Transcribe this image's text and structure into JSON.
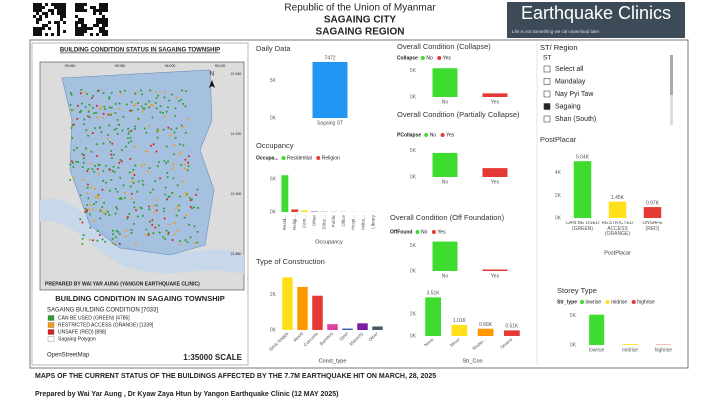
{
  "header": {
    "line1": "Republic of the Union of Myanmar",
    "line2": "SAGAING CITY",
    "line3": "SAGAING REGION"
  },
  "brand": {
    "name": "Earthquake Clinics",
    "tagline": "Life is not something we can download later"
  },
  "map": {
    "title": "BUILDING CONDITION STATUS IN SAGAING TOWNSHIP",
    "lon_labels": [
      "95.960",
      "95.980",
      "96.000",
      "96.020"
    ],
    "lat_labels": [
      "21.940",
      "21.920",
      "21.900",
      "21.880"
    ],
    "north": "N",
    "credit": "PREPARED BY WAI YAR AUNG (YANGON EARTHQUAKE CLINIC)",
    "subtitle": "BUILDING CONDITION IN SAGAING TOWNSHIP",
    "legend_title": "SAGAING BUILDING CONDITION [7033]",
    "legend": [
      {
        "name": "CAN BE USED (GREEN) [4785]",
        "color": "#2e9e2e"
      },
      {
        "name": "RESTRICTED ACCESS (ORANGE) [1339]",
        "color": "#f39c12"
      },
      {
        "name": "UNSAFE (RED) [898]",
        "color": "#d62020"
      },
      {
        "name": "Sagaing Polygon",
        "color": "#ffffff"
      }
    ],
    "basemap": "OpenStreetMap",
    "scale": "1:35000 SCALE"
  },
  "slicer": {
    "title": "ST/ Region",
    "field": "ST",
    "items": [
      {
        "label": "Select all",
        "checked": false
      },
      {
        "label": "Mandalay",
        "checked": false
      },
      {
        "label": "Nay Pyi Taw",
        "checked": false
      },
      {
        "label": "Sagaing",
        "checked": true
      },
      {
        "label": "Shan (South)",
        "checked": false
      }
    ]
  },
  "chart_data": [
    {
      "type": "bar",
      "title": "Daily Data",
      "categories": [
        "Sagaing ST"
      ],
      "values": [
        7472
      ],
      "colors": [
        "#2196f3"
      ],
      "data_labels": true,
      "ylim": [
        0,
        8000
      ],
      "yticks": [
        {
          "value": 0,
          "label": "0K"
        },
        {
          "value": 5000,
          "label": "5K"
        }
      ]
    },
    {
      "type": "bar",
      "title": "Occupancy",
      "legend": {
        "title": "Occupa...",
        "items": [
          {
            "name": "Residential",
            "color": "#3ddc2f"
          },
          {
            "name": "Religion",
            "color": "#e53935"
          }
        ]
      },
      "categories": [
        "Resid...",
        "Religi...",
        "Com...",
        "Other",
        "Educ...",
        "Public",
        "Office",
        "Hospi...",
        "Indus...",
        "Library"
      ],
      "values": [
        5600,
        400,
        250,
        80,
        60,
        40,
        30,
        20,
        15,
        10
      ],
      "colors": [
        "#3ddc2f",
        "#e53935",
        "#ffe01a",
        "#7e57c2",
        "#9e9e9e",
        "#9e9e9e",
        "#9e9e9e",
        "#9e9e9e",
        "#9e9e9e",
        "#9e9e9e"
      ],
      "xlabel": "Occupancy",
      "ylim": [
        0,
        7000
      ],
      "yticks": [
        {
          "value": 0,
          "label": "0K"
        },
        {
          "value": 5000,
          "label": "5K"
        }
      ]
    },
    {
      "type": "bar",
      "title": "Type of Construction",
      "categories": [
        "Brick Nogga",
        "Wood",
        "Concrete",
        "Bamboo",
        "Steel",
        "Masonry",
        "Other"
      ],
      "values": [
        3000,
        2450,
        1950,
        330,
        80,
        380,
        200
      ],
      "colors": [
        "#ffe01a",
        "#ff9800",
        "#e53935",
        "#e040a0",
        "#3f51b5",
        "#7b1fa2",
        "#455a64"
      ],
      "xlabel": "Const_type",
      "ylim": [
        0,
        3300
      ],
      "yticks": [
        {
          "value": 0,
          "label": "0K"
        },
        {
          "value": 2000,
          "label": "2K"
        }
      ]
    },
    {
      "type": "bar",
      "title": "Overall Condition (Collapse)",
      "legend": {
        "title": "Collapse",
        "items": [
          {
            "name": "No",
            "color": "#3ddc2f"
          },
          {
            "name": "Yes",
            "color": "#e53935"
          }
        ]
      },
      "categories": [
        "No",
        "Yes"
      ],
      "values": [
        5500,
        700
      ],
      "colors": [
        "#3ddc2f",
        "#e53935"
      ],
      "ylim": [
        0,
        6500
      ],
      "yticks": [
        {
          "value": 0,
          "label": "0K"
        },
        {
          "value": 5000,
          "label": "5K"
        }
      ]
    },
    {
      "type": "bar",
      "title": "Overall Condition (Partially Collapse)",
      "legend": {
        "title": "PCollapse",
        "items": [
          {
            "name": "No",
            "color": "#3ddc2f"
          },
          {
            "name": "Yes",
            "color": "#e53935"
          }
        ]
      },
      "categories": [
        "No",
        "Yes"
      ],
      "values": [
        4600,
        1700
      ],
      "colors": [
        "#3ddc2f",
        "#e53935"
      ],
      "ylim": [
        0,
        6500
      ],
      "yticks": [
        {
          "value": 0,
          "label": "0K"
        },
        {
          "value": 5000,
          "label": "5K"
        }
      ]
    },
    {
      "type": "bar",
      "title": "Overall Condition (Off Foundation)",
      "legend": {
        "title": "OffFound",
        "items": [
          {
            "name": "No",
            "color": "#3ddc2f"
          },
          {
            "name": "Yes",
            "color": "#e53935"
          }
        ]
      },
      "categories": [
        "No",
        "Yes"
      ],
      "values": [
        5800,
        300
      ],
      "colors": [
        "#3ddc2f",
        "#e53935"
      ],
      "ylim": [
        0,
        6500
      ],
      "yticks": [
        {
          "value": 0,
          "label": "0K"
        },
        {
          "value": 5000,
          "label": "5K"
        }
      ]
    },
    {
      "type": "bar",
      "categories": [
        "None",
        "Minor",
        "Moder...",
        "Severe"
      ],
      "values": [
        3510,
        1010,
        660,
        510
      ],
      "value_labels": [
        "3.51K",
        "1.01K",
        "0.66K",
        "0.51K"
      ],
      "colors": [
        "#3ddc2f",
        "#ffe01a",
        "#ff9800",
        "#e53935"
      ],
      "xlabel": "Str_Con",
      "ylim": [
        0,
        4000
      ],
      "yticks": [
        {
          "value": 0,
          "label": "0K"
        },
        {
          "value": 2000,
          "label": "2K"
        }
      ]
    },
    {
      "type": "bar",
      "title": "PostPlacar",
      "categories": [
        "CAN BE USED (GREEN)",
        "RESTRICTED ACCESS (ORANGE)",
        "UNSAFE (RED)"
      ],
      "values": [
        5040,
        1450,
        970
      ],
      "value_labels": [
        "5.04K",
        "1.45K",
        "0.97K"
      ],
      "colors": [
        "#3ddc2f",
        "#ffe01a",
        "#e53935"
      ],
      "xlabel": "PostPlacar",
      "ylim": [
        0,
        5500
      ],
      "yticks": [
        {
          "value": 0,
          "label": "0K"
        },
        {
          "value": 2000,
          "label": "2K"
        },
        {
          "value": 4000,
          "label": "4K"
        }
      ]
    },
    {
      "type": "bar",
      "title": "Storey Type",
      "legend": {
        "title": "Str_type",
        "items": [
          {
            "name": "lowrise",
            "color": "#3ddc2f"
          },
          {
            "name": "midrise",
            "color": "#ffe01a"
          },
          {
            "name": "highrise",
            "color": "#e53935"
          }
        ]
      },
      "categories": [
        "lowrise",
        "midrise",
        "highrise"
      ],
      "values": [
        5200,
        150,
        60
      ],
      "colors": [
        "#3ddc2f",
        "#ffe01a",
        "#e53935"
      ],
      "ylim": [
        0,
        6000
      ],
      "yticks": [
        {
          "value": 0,
          "label": "0K"
        },
        {
          "value": 5000,
          "label": "5K"
        }
      ]
    }
  ],
  "footer": {
    "line1": "MAPS OF THE CURRENT STATUS OF THE BUILDINGS AFFECTED BY THE 7.7M EARTHQUAKE HIT ON MARCH, 28, 2025",
    "line2": "Prepared by Wai Yar Aung , Dr Kyaw Zaya Htun by Yangon Earthquake Clinic (12 MAY 2025)"
  }
}
